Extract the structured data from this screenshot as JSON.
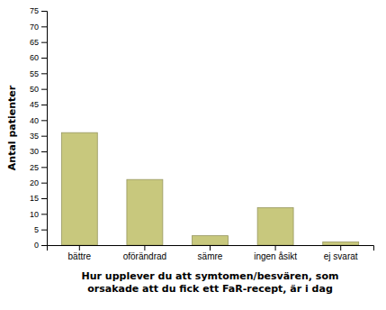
{
  "chart_data": {
    "type": "bar",
    "xlabel": "Hur upplever du att symtomen/besvären, som\norsakade att du fick ett FaR-recept, är i dag",
    "ylabel": "Antal patienter",
    "categories": [
      "bättre",
      "oförändrad",
      "sämre",
      "ingen åsikt",
      "ej svarat"
    ],
    "values": [
      36,
      21,
      3,
      12,
      1
    ],
    "color": "#c8c87d",
    "ylim": [
      0,
      75
    ],
    "yticks": [
      0,
      5,
      10,
      15,
      20,
      25,
      30,
      35,
      40,
      45,
      50,
      55,
      60,
      65,
      70,
      75
    ],
    "grid": false
  }
}
